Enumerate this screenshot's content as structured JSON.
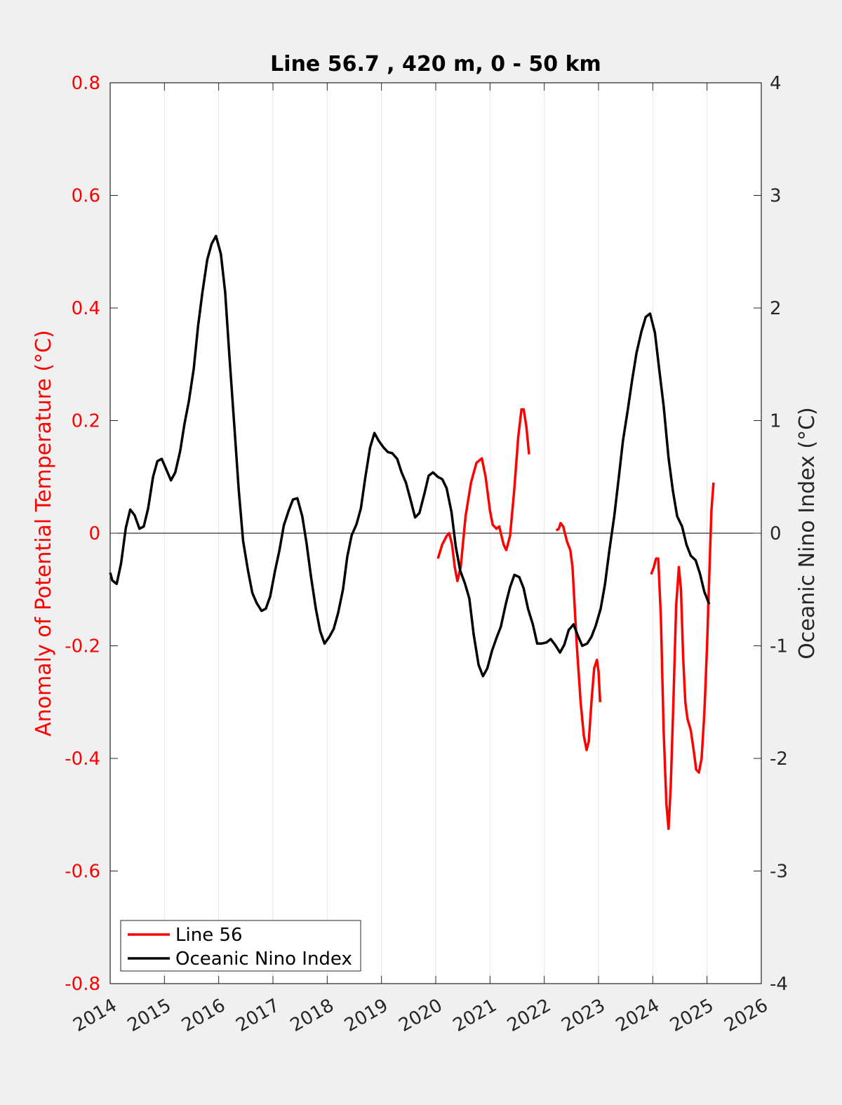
{
  "chart_data": {
    "type": "line",
    "title": "Line 56.7 , 420 m, 0 - 50 km",
    "x_ticks": [
      "2014",
      "2015",
      "2016",
      "2017",
      "2018",
      "2019",
      "2020",
      "2021",
      "2022",
      "2023",
      "2024",
      "2025",
      "2026"
    ],
    "xlim": [
      2014,
      2026
    ],
    "y_left": {
      "label": "Anomaly of Potential Temperature (°C)",
      "lim": [
        -0.8,
        0.8
      ],
      "ticks": [
        "0.8",
        "0.6",
        "0.4",
        "0.2",
        "0",
        "-0.2",
        "-0.4",
        "-0.6",
        "-0.8"
      ],
      "color": "#ff0000"
    },
    "y_right": {
      "label": "Oceanic Nino Index (°C)",
      "lim": [
        -4,
        4
      ],
      "ticks": [
        "4",
        "3",
        "2",
        "1",
        "0",
        "-1",
        "-2",
        "-3",
        "-4"
      ],
      "color": "#262626"
    },
    "grid": "vertical",
    "zero_line": true,
    "legend_position": "bottom-left",
    "series": [
      {
        "name": "Line 56",
        "axis": "left",
        "color": "#ff0000",
        "segments": [
          [
            [
              2020.04,
              -0.045
            ],
            [
              2020.12,
              -0.02
            ],
            [
              2020.2,
              -0.005
            ],
            [
              2020.25,
              0.0
            ],
            [
              2020.3,
              -0.02
            ],
            [
              2020.35,
              -0.06
            ],
            [
              2020.4,
              -0.085
            ],
            [
              2020.46,
              -0.06
            ],
            [
              2020.55,
              0.03
            ],
            [
              2020.65,
              0.09
            ],
            [
              2020.75,
              0.125
            ],
            [
              2020.85,
              0.133
            ],
            [
              2020.92,
              0.1
            ],
            [
              2021.0,
              0.04
            ],
            [
              2021.05,
              0.015
            ],
            [
              2021.12,
              0.008
            ],
            [
              2021.17,
              0.012
            ],
            [
              2021.25,
              -0.02
            ],
            [
              2021.3,
              -0.03
            ],
            [
              2021.37,
              -0.005
            ],
            [
              2021.45,
              0.08
            ],
            [
              2021.52,
              0.17
            ],
            [
              2021.58,
              0.22
            ],
            [
              2021.62,
              0.22
            ],
            [
              2021.67,
              0.19
            ],
            [
              2021.72,
              0.14
            ]
          ],
          [
            [
              2022.22,
              0.005
            ],
            [
              2022.27,
              0.008
            ],
            [
              2022.3,
              0.018
            ],
            [
              2022.35,
              0.012
            ],
            [
              2022.42,
              -0.015
            ],
            [
              2022.48,
              -0.03
            ],
            [
              2022.52,
              -0.06
            ],
            [
              2022.6,
              -0.2
            ],
            [
              2022.67,
              -0.3
            ],
            [
              2022.73,
              -0.36
            ],
            [
              2022.78,
              -0.385
            ],
            [
              2022.82,
              -0.37
            ],
            [
              2022.87,
              -0.3
            ],
            [
              2022.92,
              -0.24
            ],
            [
              2022.97,
              -0.225
            ],
            [
              2023.0,
              -0.245
            ],
            [
              2023.03,
              -0.3
            ]
          ],
          [
            [
              2023.97,
              -0.073
            ],
            [
              2024.02,
              -0.06
            ],
            [
              2024.06,
              -0.045
            ],
            [
              2024.1,
              -0.045
            ],
            [
              2024.15,
              -0.15
            ],
            [
              2024.2,
              -0.35
            ],
            [
              2024.25,
              -0.48
            ],
            [
              2024.29,
              -0.525
            ],
            [
              2024.33,
              -0.45
            ],
            [
              2024.38,
              -0.3
            ],
            [
              2024.43,
              -0.13
            ],
            [
              2024.48,
              -0.06
            ],
            [
              2024.52,
              -0.1
            ],
            [
              2024.56,
              -0.22
            ],
            [
              2024.6,
              -0.3
            ],
            [
              2024.64,
              -0.33
            ],
            [
              2024.7,
              -0.35
            ],
            [
              2024.76,
              -0.39
            ],
            [
              2024.8,
              -0.42
            ],
            [
              2024.85,
              -0.425
            ],
            [
              2024.9,
              -0.4
            ],
            [
              2024.95,
              -0.32
            ],
            [
              2025.0,
              -0.2
            ],
            [
              2025.05,
              -0.05
            ],
            [
              2025.08,
              0.04
            ],
            [
              2025.12,
              0.09
            ]
          ]
        ]
      },
      {
        "name": "Oceanic Nino Index",
        "axis": "right",
        "color": "#000000",
        "segments": [
          [
            [
              2014.0,
              -0.35
            ],
            [
              2014.04,
              -0.42
            ],
            [
              2014.12,
              -0.45
            ],
            [
              2014.2,
              -0.27
            ],
            [
              2014.29,
              0.05
            ],
            [
              2014.37,
              0.21
            ],
            [
              2014.45,
              0.16
            ],
            [
              2014.54,
              0.04
            ],
            [
              2014.62,
              0.06
            ],
            [
              2014.7,
              0.22
            ],
            [
              2014.79,
              0.5
            ],
            [
              2014.87,
              0.64
            ],
            [
              2014.95,
              0.66
            ],
            [
              2015.04,
              0.56
            ],
            [
              2015.12,
              0.47
            ],
            [
              2015.2,
              0.54
            ],
            [
              2015.29,
              0.73
            ],
            [
              2015.37,
              0.97
            ],
            [
              2015.45,
              1.17
            ],
            [
              2015.54,
              1.46
            ],
            [
              2015.62,
              1.84
            ],
            [
              2015.7,
              2.14
            ],
            [
              2015.79,
              2.43
            ],
            [
              2015.87,
              2.57
            ],
            [
              2015.95,
              2.64
            ],
            [
              2016.04,
              2.48
            ],
            [
              2016.12,
              2.14
            ],
            [
              2016.2,
              1.56
            ],
            [
              2016.29,
              0.94
            ],
            [
              2016.37,
              0.38
            ],
            [
              2016.45,
              -0.07
            ],
            [
              2016.54,
              -0.33
            ],
            [
              2016.62,
              -0.53
            ],
            [
              2016.7,
              -0.62
            ],
            [
              2016.79,
              -0.69
            ],
            [
              2016.87,
              -0.67
            ],
            [
              2016.95,
              -0.56
            ],
            [
              2017.04,
              -0.33
            ],
            [
              2017.12,
              -0.15
            ],
            [
              2017.2,
              0.07
            ],
            [
              2017.29,
              0.2
            ],
            [
              2017.37,
              0.3
            ],
            [
              2017.45,
              0.31
            ],
            [
              2017.54,
              0.15
            ],
            [
              2017.62,
              -0.09
            ],
            [
              2017.7,
              -0.38
            ],
            [
              2017.79,
              -0.67
            ],
            [
              2017.87,
              -0.87
            ],
            [
              2017.95,
              -0.98
            ],
            [
              2018.04,
              -0.92
            ],
            [
              2018.12,
              -0.85
            ],
            [
              2018.2,
              -0.71
            ],
            [
              2018.29,
              -0.5
            ],
            [
              2018.37,
              -0.21
            ],
            [
              2018.45,
              -0.02
            ],
            [
              2018.54,
              0.08
            ],
            [
              2018.62,
              0.22
            ],
            [
              2018.7,
              0.49
            ],
            [
              2018.79,
              0.76
            ],
            [
              2018.87,
              0.89
            ],
            [
              2018.95,
              0.82
            ],
            [
              2019.04,
              0.76
            ],
            [
              2019.12,
              0.72
            ],
            [
              2019.2,
              0.71
            ],
            [
              2019.29,
              0.66
            ],
            [
              2019.37,
              0.54
            ],
            [
              2019.45,
              0.45
            ],
            [
              2019.54,
              0.29
            ],
            [
              2019.62,
              0.14
            ],
            [
              2019.7,
              0.18
            ],
            [
              2019.79,
              0.35
            ],
            [
              2019.87,
              0.51
            ],
            [
              2019.95,
              0.54
            ],
            [
              2020.04,
              0.5
            ],
            [
              2020.12,
              0.48
            ],
            [
              2020.2,
              0.4
            ],
            [
              2020.29,
              0.19
            ],
            [
              2020.37,
              -0.12
            ],
            [
              2020.45,
              -0.33
            ],
            [
              2020.54,
              -0.45
            ],
            [
              2020.62,
              -0.58
            ],
            [
              2020.7,
              -0.9
            ],
            [
              2020.79,
              -1.17
            ],
            [
              2020.87,
              -1.27
            ],
            [
              2020.95,
              -1.2
            ],
            [
              2021.04,
              -1.04
            ],
            [
              2021.12,
              -0.93
            ],
            [
              2021.2,
              -0.83
            ],
            [
              2021.29,
              -0.63
            ],
            [
              2021.37,
              -0.48
            ],
            [
              2021.45,
              -0.37
            ],
            [
              2021.54,
              -0.39
            ],
            [
              2021.62,
              -0.49
            ],
            [
              2021.7,
              -0.67
            ],
            [
              2021.79,
              -0.81
            ],
            [
              2021.87,
              -0.98
            ],
            [
              2021.95,
              -0.98
            ],
            [
              2022.04,
              -0.97
            ],
            [
              2022.12,
              -0.94
            ],
            [
              2022.2,
              -0.99
            ],
            [
              2022.29,
              -1.06
            ],
            [
              2022.37,
              -0.99
            ],
            [
              2022.45,
              -0.86
            ],
            [
              2022.54,
              -0.81
            ],
            [
              2022.62,
              -0.91
            ],
            [
              2022.7,
              -1.0
            ],
            [
              2022.79,
              -0.98
            ],
            [
              2022.87,
              -0.92
            ],
            [
              2022.95,
              -0.82
            ],
            [
              2023.04,
              -0.67
            ],
            [
              2023.12,
              -0.45
            ],
            [
              2023.2,
              -0.15
            ],
            [
              2023.29,
              0.15
            ],
            [
              2023.37,
              0.48
            ],
            [
              2023.45,
              0.82
            ],
            [
              2023.54,
              1.1
            ],
            [
              2023.62,
              1.36
            ],
            [
              2023.7,
              1.6
            ],
            [
              2023.79,
              1.79
            ],
            [
              2023.87,
              1.92
            ],
            [
              2023.95,
              1.95
            ],
            [
              2024.04,
              1.78
            ],
            [
              2024.12,
              1.45
            ],
            [
              2024.2,
              1.13
            ],
            [
              2024.29,
              0.67
            ],
            [
              2024.37,
              0.38
            ],
            [
              2024.45,
              0.15
            ],
            [
              2024.54,
              0.06
            ],
            [
              2024.62,
              -0.1
            ],
            [
              2024.7,
              -0.2
            ],
            [
              2024.79,
              -0.24
            ],
            [
              2024.87,
              -0.36
            ],
            [
              2024.95,
              -0.52
            ],
            [
              2025.04,
              -0.63
            ]
          ]
        ]
      }
    ]
  },
  "legend": {
    "entries": [
      {
        "label": "Line 56",
        "color": "#ff0000"
      },
      {
        "label": "Oceanic Nino Index",
        "color": "#000000"
      }
    ]
  }
}
